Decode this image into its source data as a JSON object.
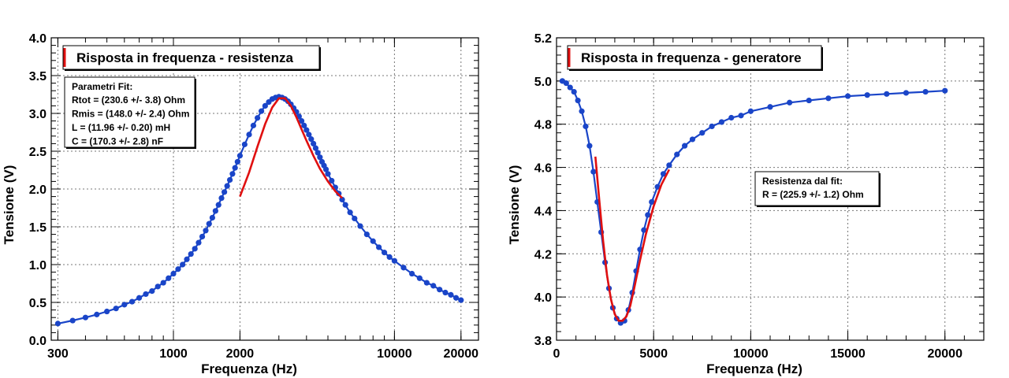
{
  "colors": {
    "data": "#1a45c8",
    "fit": "#e01010",
    "grid": "#777777"
  },
  "chart_data": [
    {
      "type": "scatter",
      "title": "Risposta in frequenza - resistenza",
      "xlabel": "Frequenza (Hz)",
      "ylabel": "Tensione (V)",
      "x_scale": "log",
      "xlim": [
        280,
        24000
      ],
      "ylim": [
        0,
        4
      ],
      "x_ticks": [
        300,
        1000,
        2000,
        10000,
        20000
      ],
      "x_tick_labels": [
        "300",
        "1000",
        "2000",
        "10000",
        "20000"
      ],
      "y_ticks": [
        0,
        0.5,
        1,
        1.5,
        2,
        2.5,
        3,
        3.5,
        4
      ],
      "y_tick_labels": [
        "0.0",
        "0.5",
        "1.0",
        "1.5",
        "2.0",
        "2.5",
        "3.0",
        "3.5",
        "4.0"
      ],
      "grid": true,
      "series": [
        {
          "role": "data",
          "x": [
            300,
            350,
            400,
            450,
            500,
            550,
            600,
            650,
            700,
            750,
            800,
            850,
            900,
            950,
            1000,
            1050,
            1100,
            1150,
            1200,
            1250,
            1300,
            1350,
            1400,
            1450,
            1500,
            1550,
            1600,
            1650,
            1700,
            1750,
            1800,
            1850,
            1900,
            1950,
            2000,
            2100,
            2200,
            2300,
            2400,
            2500,
            2600,
            2700,
            2800,
            2900,
            3000,
            3100,
            3200,
            3300,
            3400,
            3500,
            3600,
            3700,
            3800,
            3900,
            4000,
            4100,
            4200,
            4300,
            4400,
            4500,
            4600,
            4700,
            4800,
            4900,
            5000,
            5200,
            5400,
            5600,
            5800,
            6000,
            6300,
            6600,
            7000,
            7500,
            8000,
            8500,
            9000,
            9500,
            10000,
            11000,
            12000,
            13000,
            14000,
            15000,
            16000,
            17000,
            18000,
            19000,
            20000
          ],
          "y": [
            0.22,
            0.26,
            0.3,
            0.34,
            0.38,
            0.42,
            0.47,
            0.51,
            0.56,
            0.61,
            0.65,
            0.71,
            0.76,
            0.82,
            0.88,
            0.94,
            1.0,
            1.07,
            1.14,
            1.21,
            1.29,
            1.37,
            1.45,
            1.54,
            1.62,
            1.71,
            1.79,
            1.88,
            1.96,
            2.04,
            2.12,
            2.2,
            2.28,
            2.36,
            2.44,
            2.59,
            2.72,
            2.84,
            2.94,
            3.03,
            3.1,
            3.15,
            3.19,
            3.21,
            3.22,
            3.21,
            3.19,
            3.16,
            3.12,
            3.07,
            3.02,
            2.96,
            2.9,
            2.84,
            2.78,
            2.72,
            2.66,
            2.6,
            2.54,
            2.48,
            2.42,
            2.36,
            2.31,
            2.26,
            2.2,
            2.11,
            2.02,
            1.94,
            1.86,
            1.79,
            1.69,
            1.61,
            1.51,
            1.4,
            1.31,
            1.23,
            1.16,
            1.1,
            1.05,
            0.96,
            0.88,
            0.82,
            0.76,
            0.72,
            0.67,
            0.63,
            0.6,
            0.56,
            0.53
          ]
        },
        {
          "role": "fit",
          "x": [
            2000,
            2200,
            2400,
            2600,
            2800,
            3000,
            3200,
            3400,
            3600,
            3800,
            4000,
            4300,
            4600,
            5000,
            5400,
            5800
          ],
          "y": [
            1.9,
            2.22,
            2.56,
            2.86,
            3.08,
            3.2,
            3.2,
            3.1,
            2.95,
            2.79,
            2.64,
            2.44,
            2.27,
            2.1,
            1.97,
            1.88
          ]
        }
      ],
      "legend": {
        "placement": "top-left",
        "title": "Parametri Fit:",
        "lines": [
          "Rtot = (230.6 +/- 3.8) Ohm",
          "Rmis = (148.0 +/- 2.4) Ohm",
          "L = (11.96 +/- 0.20) mH",
          "C = (170.3 +/- 2.8) nF"
        ]
      }
    },
    {
      "type": "scatter",
      "title": "Risposta in frequenza - generatore",
      "xlabel": "Frequenza (Hz)",
      "ylabel": "Tensione (V)",
      "x_scale": "linear",
      "xlim": [
        0,
        22000
      ],
      "ylim": [
        3.8,
        5.2
      ],
      "x_ticks": [
        0,
        5000,
        10000,
        15000,
        20000
      ],
      "x_tick_labels": [
        "0",
        "5000",
        "10000",
        "15000",
        "20000"
      ],
      "y_ticks": [
        3.8,
        4.0,
        4.2,
        4.4,
        4.6,
        4.8,
        5.0,
        5.2
      ],
      "y_tick_labels": [
        "3.8",
        "4.0",
        "4.2",
        "4.4",
        "4.6",
        "4.8",
        "5.0",
        "5.2"
      ],
      "grid": true,
      "series": [
        {
          "role": "data",
          "x": [
            300,
            500,
            700,
            900,
            1100,
            1300,
            1500,
            1700,
            1900,
            2100,
            2300,
            2500,
            2700,
            2900,
            3100,
            3300,
            3500,
            3700,
            3900,
            4100,
            4300,
            4500,
            4700,
            4900,
            5200,
            5500,
            5800,
            6200,
            6600,
            7000,
            7500,
            8000,
            8500,
            9000,
            9500,
            10000,
            11000,
            12000,
            13000,
            14000,
            15000,
            16000,
            17000,
            18000,
            19000,
            20000
          ],
          "y": [
            5.0,
            4.99,
            4.97,
            4.95,
            4.91,
            4.86,
            4.79,
            4.7,
            4.58,
            4.44,
            4.3,
            4.16,
            4.04,
            3.95,
            3.9,
            3.88,
            3.89,
            3.94,
            4.02,
            4.12,
            4.22,
            4.31,
            4.38,
            4.44,
            4.51,
            4.57,
            4.61,
            4.66,
            4.7,
            4.73,
            4.76,
            4.79,
            4.81,
            4.83,
            4.84,
            4.86,
            4.88,
            4.9,
            4.91,
            4.92,
            4.93,
            4.935,
            4.94,
            4.945,
            4.95,
            4.955
          ]
        },
        {
          "role": "fit",
          "x": [
            2000,
            2200,
            2400,
            2600,
            2800,
            3000,
            3200,
            3400,
            3600,
            3800,
            4000,
            4300,
            4600,
            5000,
            5400,
            5800
          ],
          "y": [
            4.65,
            4.45,
            4.26,
            4.1,
            3.99,
            3.92,
            3.89,
            3.89,
            3.91,
            3.96,
            4.04,
            4.17,
            4.29,
            4.42,
            4.52,
            4.59
          ]
        }
      ],
      "legend": {
        "placement": "center-right",
        "title": "Resistenza dal fit:",
        "lines": [
          "R = (225.9 +/- 1.2) Ohm"
        ]
      }
    }
  ]
}
